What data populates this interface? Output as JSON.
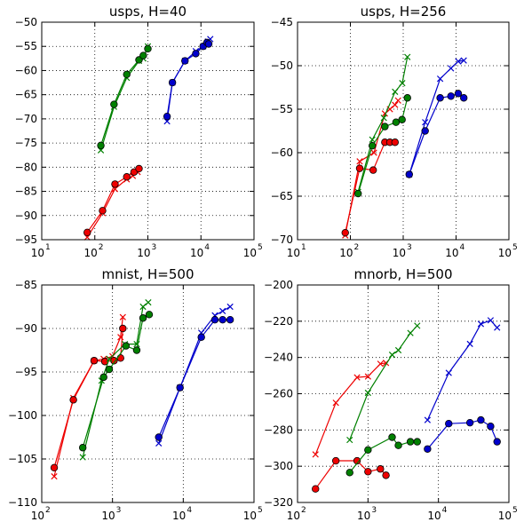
{
  "colors": {
    "red": "#ee0000",
    "green": "#008000",
    "blue": "#0000cc"
  },
  "chart_data": [
    {
      "type": "line",
      "title": "usps, H=40",
      "xscale": "log",
      "xlim": [
        10,
        100000
      ],
      "ylim": [
        -95,
        -50
      ],
      "xticks": [
        10,
        100,
        1000,
        10000,
        100000
      ],
      "xtick_labels": [
        "10",
        "10",
        "10",
        "10",
        "10"
      ],
      "xtick_exponents": [
        "1",
        "2",
        "3",
        "4",
        "5"
      ],
      "yticks": [
        -95,
        -90,
        -85,
        -80,
        -75,
        -70,
        -65,
        -60,
        -55,
        -50
      ],
      "ytick_labels": [
        "−95",
        "−90",
        "−85",
        "−80",
        "−75",
        "−70",
        "−65",
        "−60",
        "−55",
        "−50"
      ],
      "grid": true,
      "series": [
        {
          "color": "red",
          "marker": "x",
          "x": [
            72,
            140,
            240,
            400,
            520,
            640
          ],
          "y": [
            -94.5,
            -89.5,
            -84.5,
            -82.5,
            -81.8,
            -81.0
          ]
        },
        {
          "color": "red",
          "marker": "o",
          "x": [
            72,
            140,
            240,
            400,
            550,
            680
          ],
          "y": [
            -93.5,
            -89.0,
            -83.5,
            -82.0,
            -81.0,
            -80.3
          ]
        },
        {
          "color": "green",
          "marker": "x",
          "x": [
            130,
            230,
            400,
            680,
            820,
            1000
          ],
          "y": [
            -76.5,
            -67.5,
            -61.5,
            -58.0,
            -57.5,
            -55.0
          ]
        },
        {
          "color": "green",
          "marker": "o",
          "x": [
            130,
            230,
            400,
            680,
            820,
            1000
          ],
          "y": [
            -75.5,
            -67.0,
            -60.8,
            -57.8,
            -56.9,
            -55.5
          ]
        },
        {
          "color": "blue",
          "marker": "x",
          "x": [
            2300,
            2900,
            5000,
            8000,
            11000,
            13500,
            15000
          ],
          "y": [
            -70.5,
            -62.5,
            -58.0,
            -56.0,
            -55.0,
            -54.0,
            -53.5
          ]
        },
        {
          "color": "blue",
          "marker": "o",
          "x": [
            2300,
            2900,
            5000,
            8000,
            11000,
            13000,
            14000
          ],
          "y": [
            -69.5,
            -62.5,
            -58.0,
            -56.5,
            -55.0,
            -54.2,
            -54.5
          ]
        }
      ]
    },
    {
      "type": "line",
      "title": "usps, H=256",
      "xscale": "log",
      "xlim": [
        10,
        100000
      ],
      "ylim": [
        -70,
        -45
      ],
      "xticks": [
        10,
        100,
        1000,
        10000,
        100000
      ],
      "xtick_labels": [
        "10",
        "10",
        "10",
        "10",
        "10"
      ],
      "xtick_exponents": [
        "1",
        "2",
        "3",
        "4",
        "5"
      ],
      "yticks": [
        -70,
        -65,
        -60,
        -55,
        -50,
        -45
      ],
      "ytick_labels": [
        "−70",
        "−65",
        "−60",
        "−55",
        "−50",
        "−45"
      ],
      "grid": true,
      "series": [
        {
          "color": "red",
          "marker": "x",
          "x": [
            80,
            150,
            280,
            450,
            560,
            700,
            800
          ],
          "y": [
            -69.5,
            -61.0,
            -60.0,
            -55.5,
            -55.0,
            -54.5,
            -54.0
          ]
        },
        {
          "color": "red",
          "marker": "o",
          "x": [
            80,
            150,
            270,
            450,
            560,
            700
          ],
          "y": [
            -69.2,
            -61.8,
            -62.0,
            -58.8,
            -58.8,
            -58.8
          ]
        },
        {
          "color": "green",
          "marker": "x",
          "x": [
            140,
            260,
            430,
            700,
            960,
            1200
          ],
          "y": [
            -64.5,
            -58.5,
            -56.0,
            -53.0,
            -52.0,
            -49.0
          ]
        },
        {
          "color": "green",
          "marker": "o",
          "x": [
            140,
            260,
            450,
            730,
            950,
            1200
          ],
          "y": [
            -64.7,
            -59.2,
            -57.0,
            -56.5,
            -56.2,
            -53.7
          ]
        },
        {
          "color": "blue",
          "marker": "x",
          "x": [
            1300,
            2600,
            5000,
            8000,
            11000,
            14000
          ],
          "y": [
            -62.5,
            -56.5,
            -51.5,
            -50.3,
            -49.5,
            -49.4
          ]
        },
        {
          "color": "blue",
          "marker": "o",
          "x": [
            1300,
            2600,
            5000,
            8000,
            11000,
            14000
          ],
          "y": [
            -62.5,
            -57.5,
            -53.7,
            -53.5,
            -53.2,
            -53.7
          ]
        }
      ]
    },
    {
      "type": "line",
      "title": "mnist, H=500",
      "xscale": "log",
      "xlim": [
        100,
        100000
      ],
      "ylim": [
        -110,
        -85
      ],
      "xticks": [
        100,
        1000,
        10000,
        100000
      ],
      "xtick_labels": [
        "10",
        "10",
        "10",
        "10"
      ],
      "xtick_exponents": [
        "2",
        "3",
        "4",
        "5"
      ],
      "yticks": [
        -110,
        -105,
        -100,
        -95,
        -90,
        -85
      ],
      "ytick_labels": [
        "−110",
        "−105",
        "−100",
        "−95",
        "−90",
        "−85"
      ],
      "grid": true,
      "series": [
        {
          "color": "red",
          "marker": "x",
          "x": [
            150,
            280,
            550,
            750,
            1000,
            1300,
            1400
          ],
          "y": [
            -107.0,
            -98.0,
            -93.7,
            -93.5,
            -93.2,
            -91.0,
            -88.7
          ]
        },
        {
          "color": "red",
          "marker": "o",
          "x": [
            150,
            280,
            550,
            780,
            1050,
            1300,
            1400
          ],
          "y": [
            -106.0,
            -98.2,
            -93.7,
            -93.8,
            -93.7,
            -93.4,
            -90.0
          ]
        },
        {
          "color": "green",
          "marker": "x",
          "x": [
            380,
            700,
            900,
            1500,
            2200,
            2700,
            3200
          ],
          "y": [
            -104.8,
            -96.0,
            -93.5,
            -91.8,
            -91.8,
            -87.5,
            -87.0
          ]
        },
        {
          "color": "green",
          "marker": "o",
          "x": [
            380,
            750,
            900,
            1550,
            2200,
            2700,
            3300
          ],
          "y": [
            -103.7,
            -95.6,
            -94.7,
            -92.0,
            -92.5,
            -88.8,
            -88.4
          ]
        },
        {
          "color": "blue",
          "marker": "x",
          "x": [
            4500,
            9000,
            18000,
            28000,
            36000,
            46000
          ],
          "y": [
            -103.2,
            -96.8,
            -90.5,
            -88.5,
            -88.0,
            -87.5
          ]
        },
        {
          "color": "blue",
          "marker": "o",
          "x": [
            4500,
            9000,
            18000,
            28000,
            36000,
            46000
          ],
          "y": [
            -102.5,
            -96.8,
            -91.0,
            -89.0,
            -89.0,
            -89.0
          ]
        }
      ]
    },
    {
      "type": "line",
      "title": "mnorb, H=500",
      "xscale": "log",
      "xlim": [
        100,
        100000
      ],
      "ylim": [
        -320,
        -200
      ],
      "xticks": [
        100,
        1000,
        10000,
        100000
      ],
      "xtick_labels": [
        "10",
        "10",
        "10",
        "10"
      ],
      "xtick_exponents": [
        "2",
        "3",
        "4",
        "5"
      ],
      "yticks": [
        -320,
        -300,
        -280,
        -260,
        -240,
        -220,
        -200
      ],
      "ytick_labels": [
        "−320",
        "−300",
        "−280",
        "−260",
        "−240",
        "−220",
        "−200"
      ],
      "grid": true,
      "series": [
        {
          "color": "red",
          "marker": "x",
          "x": [
            180,
            350,
            700,
            1000,
            1500,
            1800
          ],
          "y": [
            -293.5,
            -265.0,
            -251.0,
            -250.5,
            -243.5,
            -243.0
          ]
        },
        {
          "color": "red",
          "marker": "o",
          "x": [
            180,
            350,
            700,
            1000,
            1500,
            1800
          ],
          "y": [
            -312.5,
            -297.0,
            -297.0,
            -303.0,
            -301.5,
            -305.0
          ]
        },
        {
          "color": "green",
          "marker": "x",
          "x": [
            550,
            1000,
            2200,
            2700,
            4000,
            5000
          ],
          "y": [
            -285.5,
            -259.5,
            -238.5,
            -236.0,
            -226.5,
            -222.5
          ]
        },
        {
          "color": "green",
          "marker": "o",
          "x": [
            550,
            1000,
            2200,
            2700,
            4000,
            5000
          ],
          "y": [
            -303.5,
            -291.0,
            -284.0,
            -288.5,
            -286.5,
            -286.5
          ]
        },
        {
          "color": "blue",
          "marker": "x",
          "x": [
            7000,
            14000,
            28000,
            40000,
            55000,
            68000
          ],
          "y": [
            -274.5,
            -248.5,
            -232.5,
            -221.5,
            -219.5,
            -223.5
          ]
        },
        {
          "color": "blue",
          "marker": "o",
          "x": [
            7000,
            14000,
            28000,
            40000,
            55000,
            68000
          ],
          "y": [
            -290.5,
            -276.5,
            -276.0,
            -274.5,
            -278.0,
            -286.5
          ]
        }
      ]
    }
  ]
}
